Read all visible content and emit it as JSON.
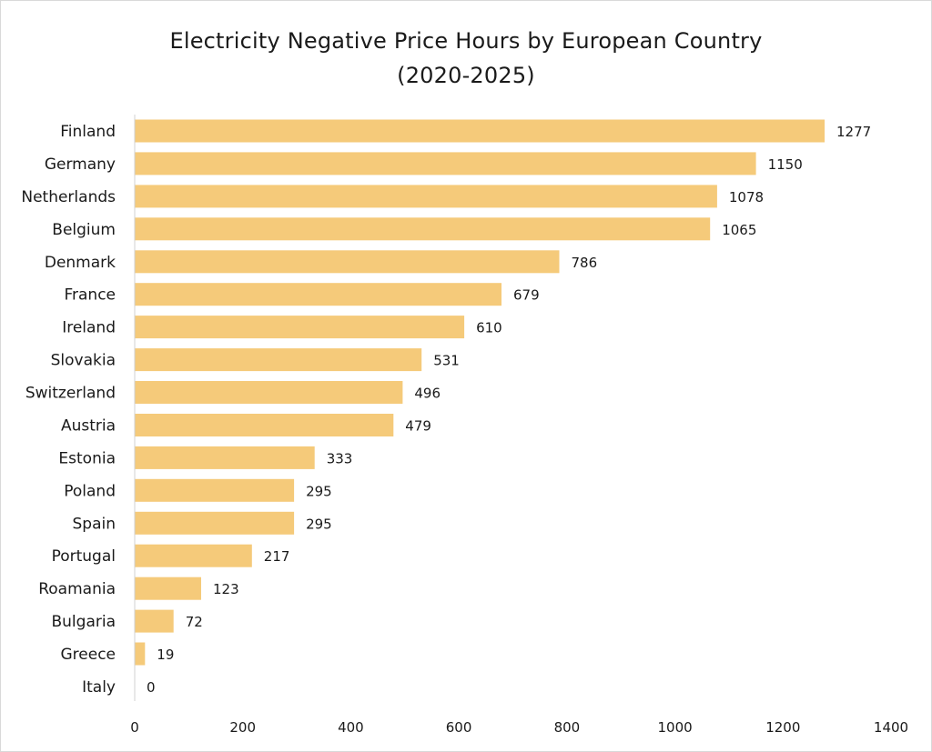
{
  "chart_data": {
    "type": "bar",
    "orientation": "horizontal",
    "title": "Electricity Negative Price Hours by European Country",
    "subtitle": "(2020-2025)",
    "xlabel": "",
    "ylabel": "",
    "categories": [
      "Finland",
      "Germany",
      "Netherlands",
      "Belgium",
      "Denmark",
      "France",
      "Ireland",
      "Slovakia",
      "Switzerland",
      "Austria",
      "Estonia",
      "Poland",
      "Spain",
      "Portugal",
      "Roamania",
      "Bulgaria",
      "Greece",
      "Italy"
    ],
    "values": [
      1277,
      1150,
      1078,
      1065,
      786,
      679,
      610,
      531,
      496,
      479,
      333,
      295,
      295,
      217,
      123,
      72,
      19,
      0
    ],
    "xlim": [
      0,
      1400
    ],
    "xticks": [
      0,
      200,
      400,
      600,
      800,
      1000,
      1200,
      1400
    ],
    "grid": false,
    "legend": "none",
    "bar_color": "#F5CA7A"
  }
}
